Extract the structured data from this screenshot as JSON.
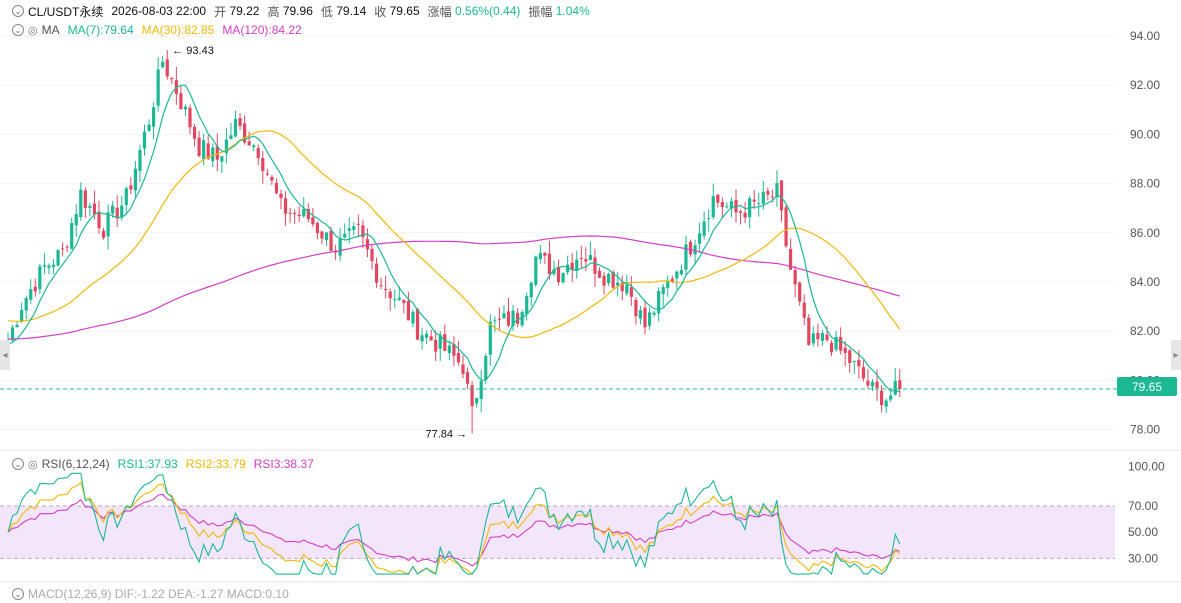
{
  "header": {
    "symbol": "CL/USDT永续",
    "datetime": "2026-08-03 22:00",
    "open_label": "开",
    "open": "79.22",
    "high_label": "高",
    "high": "79.96",
    "low_label": "低",
    "low": "79.14",
    "close_label": "收",
    "close": "79.65",
    "change_label": "涨幅",
    "change": "0.56%(0.44)",
    "amp_label": "振幅",
    "amp": "1.04%"
  },
  "ma_legend": {
    "name": "MA",
    "ma7": "MA(7):79.64",
    "ma30": "MA(30):82.85",
    "ma120": "MA(120):84.22"
  },
  "rsi_legend": {
    "name": "RSI(6,12,24)",
    "rsi1": "RSI1:37.93",
    "rsi2": "RSI2:33.79",
    "rsi3": "RSI3:38.37"
  },
  "macd_legend": {
    "text": "MACD(12,26,9) DIF:-1.22 DEA:-1.27 MACD:0.10"
  },
  "price_tag": "79.65",
  "high_marker": "93.43",
  "low_marker": "77.84",
  "colors": {
    "up": "#1cb894",
    "down": "#e2475f",
    "ma7": "#1cb894",
    "ma30": "#f0b90b",
    "ma120": "#d23fc4"
  },
  "chart_data": [
    {
      "type": "candlestick",
      "title": "",
      "ylim": [
        77,
        95
      ],
      "y_ticks": [
        "94.00",
        "92.00",
        "90.00",
        "88.00",
        "86.00",
        "84.00",
        "82.00",
        "80.00",
        "78.00"
      ],
      "last_price": 79.65,
      "close_anchors": [
        [
          0,
          81.6
        ],
        [
          3,
          83.1
        ],
        [
          8,
          84.6
        ],
        [
          12,
          85.2
        ],
        [
          16,
          87.6
        ],
        [
          21,
          86.2
        ],
        [
          26,
          87.4
        ],
        [
          31,
          90.6
        ],
        [
          34,
          93.0
        ],
        [
          37,
          91.8
        ],
        [
          42,
          89.5
        ],
        [
          46,
          89.0
        ],
        [
          50,
          90.4
        ],
        [
          55,
          89.4
        ],
        [
          60,
          87.0
        ],
        [
          66,
          86.6
        ],
        [
          72,
          85.4
        ],
        [
          77,
          86.0
        ],
        [
          82,
          84.0
        ],
        [
          86,
          83.2
        ],
        [
          90,
          82.1
        ],
        [
          95,
          81.4
        ],
        [
          100,
          80.6
        ],
        [
          102,
          78.6
        ],
        [
          106,
          82.2
        ],
        [
          112,
          82.6
        ],
        [
          116,
          85.0
        ],
        [
          121,
          84.4
        ],
        [
          126,
          85.2
        ],
        [
          131,
          84.3
        ],
        [
          136,
          83.9
        ],
        [
          140,
          82.2
        ],
        [
          144,
          83.6
        ],
        [
          150,
          85.5
        ],
        [
          155,
          87.4
        ],
        [
          160,
          86.8
        ],
        [
          165,
          87.2
        ],
        [
          169,
          87.6
        ],
        [
          172,
          84.5
        ],
        [
          176,
          81.4
        ],
        [
          180,
          81.7
        ],
        [
          185,
          80.8
        ],
        [
          190,
          79.6
        ],
        [
          193,
          79.3
        ],
        [
          196,
          79.65
        ]
      ],
      "extremes": {
        "high": 93.43,
        "low": 77.84
      },
      "series": [
        {
          "name": "MA(7)"
        },
        {
          "name": "MA(30)"
        },
        {
          "name": "MA(120)"
        }
      ]
    },
    {
      "type": "line",
      "title": "",
      "ylim": [
        20,
        100
      ],
      "y_ticks": [
        "100.00",
        "70.00",
        "50.00",
        "30.00"
      ],
      "band": [
        30,
        70
      ],
      "series": [
        {
          "name": "RSI1"
        },
        {
          "name": "RSI2"
        },
        {
          "name": "RSI3"
        }
      ]
    }
  ]
}
